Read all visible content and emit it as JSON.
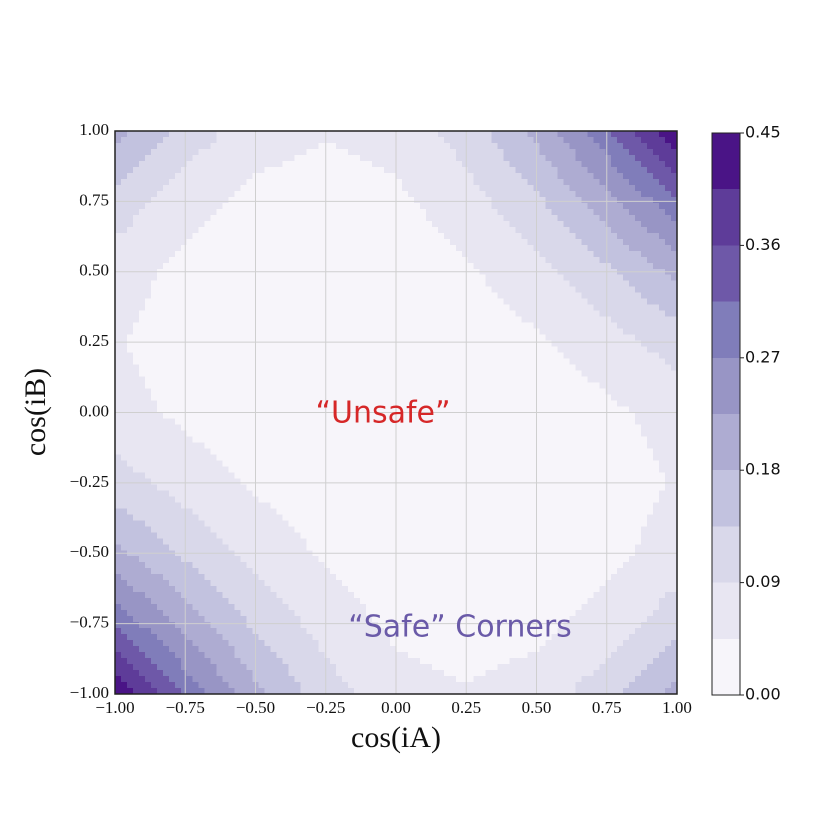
{
  "chart_data": {
    "type": "contour",
    "xlabel": "cos(iA)",
    "ylabel": "cos(iB)",
    "annotations": [
      {
        "text": "“Unsafe”",
        "color": "#d62728"
      },
      {
        "text": "“Safe”  Corners",
        "color": "#6a5aa8"
      }
    ],
    "x": [
      -1,
      -0.75,
      -0.5,
      -0.25,
      0,
      0.25,
      0.5,
      0.75,
      1
    ],
    "y": [
      -1,
      -0.75,
      -0.5,
      -0.25,
      0,
      0.25,
      0.5,
      0.75,
      1
    ],
    "z": [
      [
        0.45,
        0.304,
        0.191,
        0.11,
        0.063,
        0.048,
        0.066,
        0.116,
        0.2
      ],
      [
        0.304,
        0.204,
        0.126,
        0.07,
        0.035,
        0.023,
        0.032,
        0.063,
        0.116
      ],
      [
        0.191,
        0.126,
        0.075,
        0.038,
        0.016,
        0.007,
        0.013,
        0.032,
        0.066
      ],
      [
        0.11,
        0.07,
        0.038,
        0.016,
        0.004,
        0.001,
        0.007,
        0.023,
        0.048
      ],
      [
        0.063,
        0.035,
        0.016,
        0.004,
        0,
        0.004,
        0.016,
        0.035,
        0.063
      ],
      [
        0.048,
        0.023,
        0.007,
        0.001,
        0.004,
        0.016,
        0.038,
        0.07,
        0.11
      ],
      [
        0.066,
        0.032,
        0.013,
        0.007,
        0.016,
        0.038,
        0.075,
        0.126,
        0.191
      ],
      [
        0.116,
        0.063,
        0.032,
        0.023,
        0.035,
        0.07,
        0.126,
        0.204,
        0.304
      ],
      [
        0.2,
        0.116,
        0.066,
        0.048,
        0.063,
        0.11,
        0.191,
        0.304,
        0.45
      ]
    ],
    "levels": [
      0,
      0.045,
      0.09,
      0.135,
      0.18,
      0.225,
      0.27,
      0.315,
      0.36,
      0.405,
      0.45
    ],
    "colors": [
      "#f7f5fa",
      "#e8e6f2",
      "#d9d8ea",
      "#c2c2df",
      "#aeacd2",
      "#9895c5",
      "#807dba",
      "#6e58a8",
      "#5e3c99",
      "#4a1486"
    ],
    "xlim": [
      -1,
      1
    ],
    "ylim": [
      -1,
      1
    ],
    "xticks": [
      {
        "value": -1,
        "label": "−1.00"
      },
      {
        "value": -0.75,
        "label": "−0.75"
      },
      {
        "value": -0.5,
        "label": "−0.50"
      },
      {
        "value": -0.25,
        "label": "−0.25"
      },
      {
        "value": 0,
        "label": "0.00"
      },
      {
        "value": 0.25,
        "label": "0.25"
      },
      {
        "value": 0.5,
        "label": "0.50"
      },
      {
        "value": 0.75,
        "label": "0.75"
      },
      {
        "value": 1,
        "label": "1.00"
      }
    ],
    "yticks": [
      {
        "value": -1,
        "label": "−1.00"
      },
      {
        "value": -0.75,
        "label": "−0.75"
      },
      {
        "value": -0.5,
        "label": "−0.50"
      },
      {
        "value": -0.25,
        "label": "−0.25"
      },
      {
        "value": 0,
        "label": "0.00"
      },
      {
        "value": 0.25,
        "label": "0.25"
      },
      {
        "value": 0.5,
        "label": "0.50"
      },
      {
        "value": 0.75,
        "label": "0.75"
      },
      {
        "value": 1,
        "label": "1.00"
      }
    ],
    "colorbar_ticks": [
      {
        "value": 0,
        "label": "0.00"
      },
      {
        "value": 0.09,
        "label": "0.09"
      },
      {
        "value": 0.18,
        "label": "0.18"
      },
      {
        "value": 0.27,
        "label": "0.27"
      },
      {
        "value": 0.36,
        "label": "0.36"
      },
      {
        "value": 0.45,
        "label": "0.45"
      }
    ],
    "grid": true
  }
}
